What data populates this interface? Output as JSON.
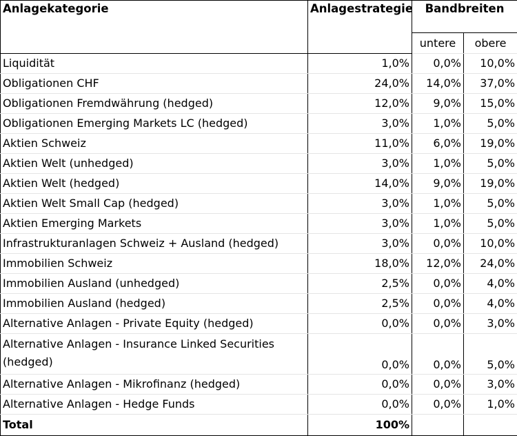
{
  "headers": {
    "category": "Anlagekategorie",
    "strategy": "Anlagestrategie",
    "bands": "Bandbreiten",
    "lower": "untere",
    "upper": "obere"
  },
  "rows": [
    {
      "category": "Liquidität",
      "strategy": "1,0%",
      "lower": "0,0%",
      "upper": "10,0%"
    },
    {
      "category": "Obligationen CHF",
      "strategy": "24,0%",
      "lower": "14,0%",
      "upper": "37,0%"
    },
    {
      "category": "Obligationen Fremdwährung (hedged)",
      "strategy": "12,0%",
      "lower": "9,0%",
      "upper": "15,0%"
    },
    {
      "category": "Obligationen Emerging Markets LC (hedged)",
      "strategy": "3,0%",
      "lower": "1,0%",
      "upper": "5,0%"
    },
    {
      "category": "Aktien Schweiz",
      "strategy": "11,0%",
      "lower": "6,0%",
      "upper": "19,0%"
    },
    {
      "category": "Aktien Welt (unhedged)",
      "strategy": "3,0%",
      "lower": "1,0%",
      "upper": "5,0%"
    },
    {
      "category": "Aktien Welt (hedged)",
      "strategy": "14,0%",
      "lower": "9,0%",
      "upper": "19,0%"
    },
    {
      "category": "Aktien Welt Small Cap (hedged)",
      "strategy": "3,0%",
      "lower": "1,0%",
      "upper": "5,0%"
    },
    {
      "category": "Aktien Emerging Markets",
      "strategy": "3,0%",
      "lower": "1,0%",
      "upper": "5,0%"
    },
    {
      "category": "Infrastrukturanlagen Schweiz + Ausland (hedged)",
      "strategy": "3,0%",
      "lower": "0,0%",
      "upper": "10,0%"
    },
    {
      "category": "Immobilien Schweiz",
      "strategy": "18,0%",
      "lower": "12,0%",
      "upper": "24,0%"
    },
    {
      "category": "Immobilien Ausland (unhedged)",
      "strategy": "2,5%",
      "lower": "0,0%",
      "upper": "4,0%"
    },
    {
      "category": "Immobilien Ausland (hedged)",
      "strategy": "2,5%",
      "lower": "0,0%",
      "upper": "4,0%"
    },
    {
      "category": "Alternative Anlagen - Private Equity (hedged)",
      "strategy": "0,0%",
      "lower": "0,0%",
      "upper": "3,0%"
    },
    {
      "category": "Alternative Anlagen - Insurance Linked Securities (hedged)",
      "strategy": "0,0%",
      "lower": "0,0%",
      "upper": "5,0%"
    },
    {
      "category": "Alternative Anlagen - Mikrofinanz (hedged)",
      "strategy": "0,0%",
      "lower": "0,0%",
      "upper": "3,0%"
    },
    {
      "category": "Alternative Anlagen - Hedge Funds",
      "strategy": "0,0%",
      "lower": "0,0%",
      "upper": "1,0%"
    }
  ],
  "total": {
    "label": "Total",
    "strategy": "100%"
  }
}
